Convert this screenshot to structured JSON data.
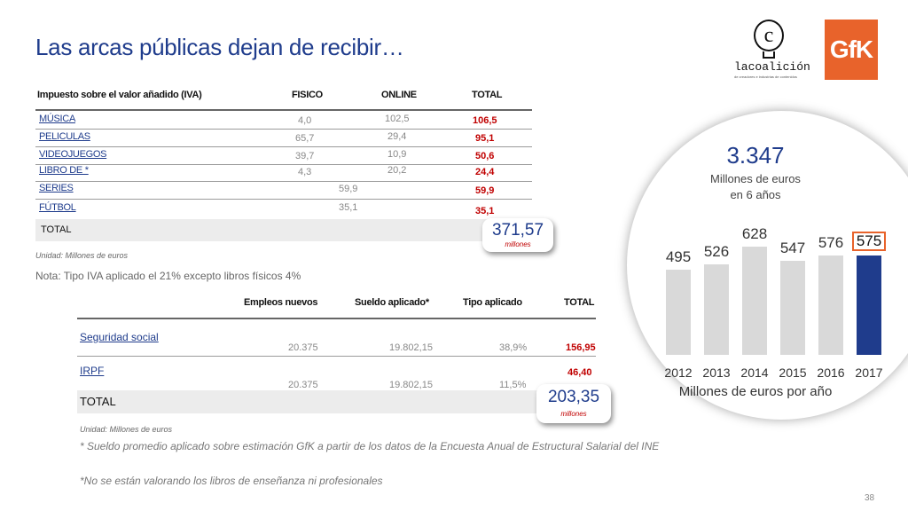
{
  "title": "Las arcas públicas dejan de recibir…",
  "logos": {
    "coalicion_name": "lacoalición",
    "coalicion_sub": "de creadores e industrias de contenidos",
    "gfk": "GfK"
  },
  "table1": {
    "headers": [
      "Impuesto sobre el valor añadido (IVA)",
      "FISICO",
      "ONLINE",
      "TOTAL"
    ],
    "rows": [
      {
        "label": "MÚSICA",
        "fisico": "4,0",
        "online": "102,5",
        "total": "106,5"
      },
      {
        "label": "PELICULAS",
        "fisico": "65,7",
        "online": "29,4",
        "total": "95,1"
      },
      {
        "label": "VIDEOJUEGOS",
        "fisico": "39,7",
        "online": "10,9",
        "total": "50,6"
      },
      {
        "label": "LIBRO DE *",
        "fisico": "4,3",
        "online": "20,2",
        "total": "24,4"
      },
      {
        "label": "SERIES",
        "merged": "59,9",
        "total": "59,9"
      },
      {
        "label": "FÚTBOL",
        "merged": "35,1",
        "total": "35,1"
      }
    ],
    "total_label": "TOTAL",
    "total_value": "371,57",
    "total_unit": "millones",
    "unit_note": "Unidad: Millones de euros",
    "note": "Nota: Tipo IVA aplicado el 21% excepto libros físicos 4%"
  },
  "table2": {
    "headers": [
      "Empleos nuevos",
      "Sueldo aplicado*",
      "Tipo aplicado",
      "TOTAL"
    ],
    "rows": [
      {
        "label": "Seguridad social",
        "empleos": "20.375",
        "sueldo": "19.802,15",
        "tipo": "38,9%",
        "total": "156,95"
      },
      {
        "label": "IRPF",
        "empleos": "20.375",
        "sueldo": "19.802,15",
        "tipo": "11,5%",
        "total": "46,40"
      }
    ],
    "total_label": "TOTAL",
    "total_value": "203,35",
    "total_unit": "millones",
    "unit_note": "Unidad: Millones de euros"
  },
  "footnotes": [
    "* Sueldo promedio aplicado sobre estimación GfK a partir de los datos de la Encuesta Anual de Estructural Salarial del INE",
    "*No se están valorando los libros de enseñanza ni profesionales"
  ],
  "page_number": "38",
  "summary": {
    "value": "3.347",
    "line1": "Millones de euros",
    "line2": "en 6 años"
  },
  "chart_data": {
    "type": "bar",
    "categories": [
      "2012",
      "2013",
      "2014",
      "2015",
      "2016",
      "2017"
    ],
    "values": [
      495,
      526,
      628,
      547,
      576,
      575
    ],
    "value_labels": [
      "495",
      "526",
      "628",
      "547",
      "576",
      "575"
    ],
    "xlabel": "Millones de euros por año",
    "ylabel": "",
    "highlight_index": 5,
    "colors": {
      "default": "#d9d9d9",
      "highlight": "#1f3c8c",
      "highlight_border": "#e8632b"
    }
  }
}
